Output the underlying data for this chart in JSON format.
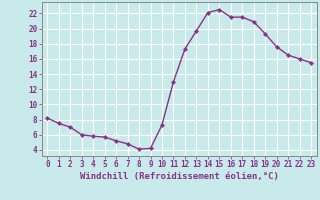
{
  "x": [
    0,
    1,
    2,
    3,
    4,
    5,
    6,
    7,
    8,
    9,
    10,
    11,
    12,
    13,
    14,
    15,
    16,
    17,
    18,
    19,
    20,
    21,
    22,
    23
  ],
  "y": [
    8.2,
    7.5,
    7.0,
    6.0,
    5.8,
    5.7,
    5.2,
    4.8,
    4.1,
    4.2,
    7.3,
    13.0,
    17.3,
    19.7,
    22.1,
    22.5,
    21.5,
    21.5,
    20.9,
    19.3,
    17.6,
    16.5,
    16.0,
    15.5
  ],
  "line_color": "#883388",
  "marker": "D",
  "marker_size": 2.2,
  "line_width": 1.0,
  "xlabel": "Windchill (Refroidissement éolien,°C)",
  "xlabel_fontsize": 6.5,
  "xlabel_color": "#883388",
  "yticks": [
    4,
    6,
    8,
    10,
    12,
    14,
    16,
    18,
    20,
    22
  ],
  "xlim": [
    -0.5,
    23.5
  ],
  "ylim": [
    3.2,
    23.5
  ],
  "background_color": "#c8eaea",
  "grid_color": "#b0d8d8",
  "tick_color": "#883388",
  "tick_fontsize": 5.5,
  "spine_color": "#888888"
}
